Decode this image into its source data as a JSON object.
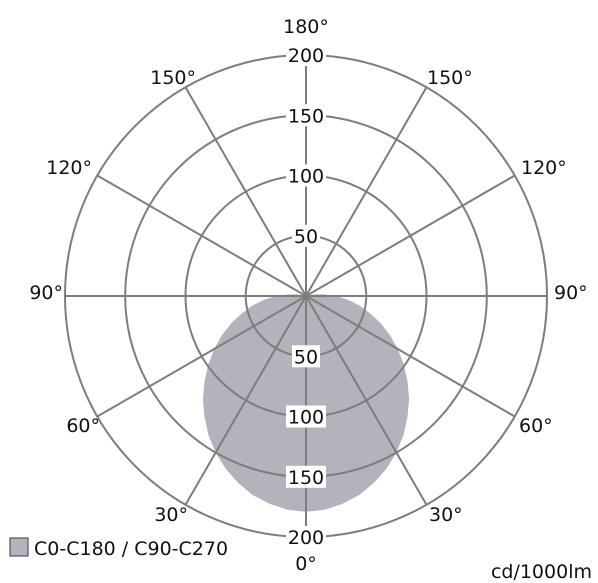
{
  "chart_data": {
    "type": "polar-area",
    "title": "",
    "radial_ticks": [
      50,
      100,
      150,
      200
    ],
    "radial_max": 200,
    "angle_labels_left": [
      "180°",
      "150°",
      "120°",
      "90°",
      "60°",
      "30°",
      "0°"
    ],
    "angle_labels_right": [
      "150°",
      "120°",
      "90°",
      "60°",
      "30°"
    ],
    "angles_deg": [
      0,
      5,
      10,
      15,
      20,
      25,
      30,
      35,
      40,
      45,
      50,
      55,
      60,
      65,
      70,
      75,
      80,
      85,
      90,
      95,
      100,
      105,
      110
    ],
    "series": [
      {
        "name": "C0-C180 / C90-C270",
        "color": "#b3b3be",
        "values": [
          179,
          178,
          175,
          171,
          165,
          158,
          150,
          141,
          131,
          121,
          110,
          99,
          88,
          77,
          66,
          55,
          45,
          35,
          25,
          15,
          8,
          3,
          0
        ]
      }
    ],
    "unit_label": "cd/1000lm",
    "legend": {
      "position": "bottom-left",
      "label": "C0-C180 / C90-C270"
    }
  }
}
